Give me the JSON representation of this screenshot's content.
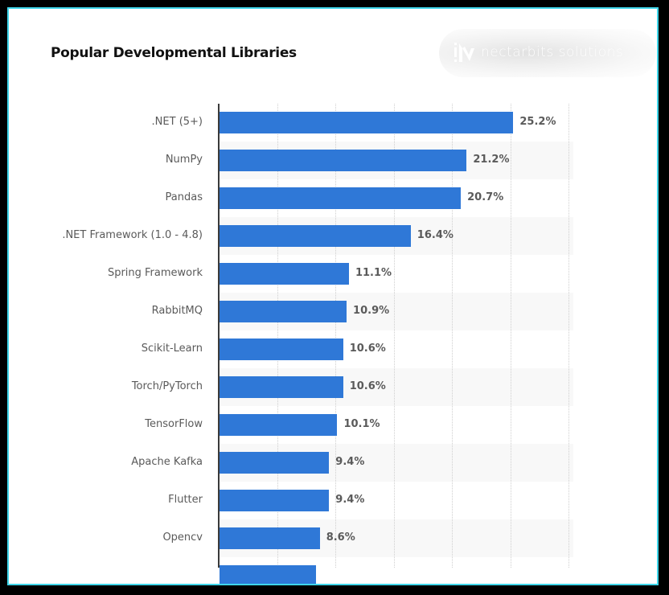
{
  "title": "Popular Developmental Libraries",
  "watermark": {
    "text": "nectarbits solutions",
    "icon": "nectarbits-logo-icon"
  },
  "colors": {
    "bar": "#2f78d7",
    "frame_border": "#3fd6ea",
    "background": "#000000",
    "card": "#ffffff",
    "band_alt": "#f8f8f8"
  },
  "chart_data": {
    "type": "bar",
    "orientation": "horizontal",
    "title": "Popular Developmental Libraries",
    "xlabel": "",
    "ylabel": "",
    "xlim": [
      0,
      30
    ],
    "grid": true,
    "grid_step": 5,
    "legend": null,
    "value_suffix": "%",
    "categories": [
      ".NET (5+)",
      "NumPy",
      "Pandas",
      ".NET Framework (1.0 - 4.8)",
      "Spring Framework",
      "RabbitMQ",
      "Scikit-Learn",
      "Torch/PyTorch",
      "TensorFlow",
      "Apache Kafka",
      "Flutter",
      "Opencv"
    ],
    "values": [
      25.2,
      21.2,
      20.7,
      16.4,
      11.1,
      10.9,
      10.6,
      10.6,
      10.1,
      9.4,
      9.4,
      8.6
    ],
    "labels": [
      "25.2%",
      "21.2%",
      "20.7%",
      "16.4%",
      "11.1%",
      "10.9%",
      "10.6%",
      "10.6%",
      "10.1%",
      "9.4%",
      "9.4%",
      "8.6%"
    ],
    "note": "A 13th bar is partially visible (cut off) at the bottom, value approx 8.3"
  }
}
